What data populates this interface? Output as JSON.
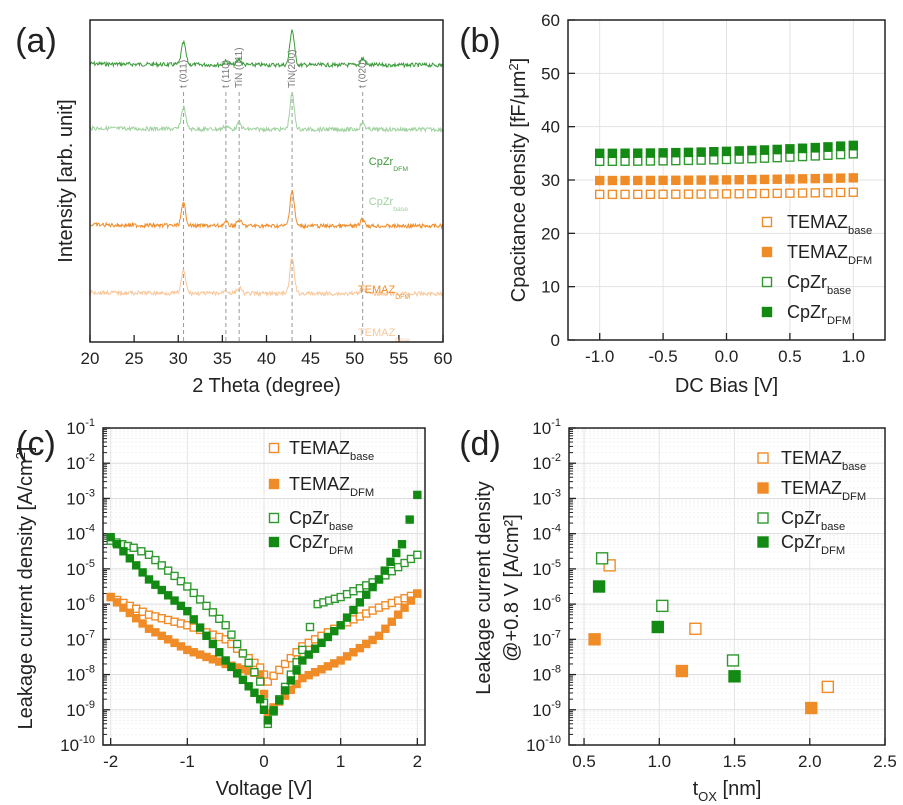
{
  "chart_data": [
    {
      "panel": "(a)",
      "type": "line",
      "xlabel": "2 Theta (degree)",
      "ylabel": "Intensity [arb. unit]",
      "xlim": [
        20,
        60
      ],
      "xticks": [
        20,
        25,
        30,
        35,
        40,
        45,
        50,
        55,
        60
      ],
      "peaks": [
        {
          "label": "t (011)",
          "x": 30.6
        },
        {
          "label": "t (110)",
          "x": 35.4
        },
        {
          "label": "TiN (011)",
          "x": 36.9
        },
        {
          "label": "TiN(200)",
          "x": 42.9
        },
        {
          "label": "t (020)",
          "x": 50.9
        }
      ],
      "series": [
        {
          "name": "CpZr",
          "sub": "DFM",
          "color": "#3a9a3a",
          "offset": 0.86
        },
        {
          "name": "CpZr",
          "sub": "base",
          "color": "#9fd19f",
          "offset": 0.66
        },
        {
          "name": "TEMAZ",
          "sub": "DFM",
          "color": "#f08c28",
          "offset": 0.36
        },
        {
          "name": "TEMAZ",
          "sub": "base",
          "color": "#f8c79a",
          "offset": 0.15
        }
      ]
    },
    {
      "panel": "(b)",
      "type": "scatter",
      "xlabel": "DC Bias [V]",
      "ylabel": "Cpacitance density [fF/μm²]",
      "xlim": [
        -1.25,
        1.25
      ],
      "ylim": [
        0,
        60
      ],
      "xticks": [
        "-1.0",
        "-0.5",
        "0.0",
        "0.5",
        "1.0"
      ],
      "yticks": [
        "0",
        "10",
        "20",
        "30",
        "40",
        "50",
        "60"
      ],
      "legend": "bottom-right",
      "series": [
        {
          "name": "TEMAZ",
          "sub": "base",
          "color": "#f08c28",
          "filled": false,
          "y_start": 27.3,
          "y_end": 27.7
        },
        {
          "name": "TEMAZ",
          "sub": "DFM",
          "color": "#f08c28",
          "filled": true,
          "y_start": 29.9,
          "y_end": 30.4
        },
        {
          "name": "CpZr",
          "sub": "base",
          "color": "#2e9a2e",
          "filled": false,
          "y_start": 33.5,
          "y_end": 34.9
        },
        {
          "name": "CpZr",
          "sub": "DFM",
          "color": "#138a13",
          "filled": true,
          "y_start": 35.0,
          "y_end": 36.5
        }
      ]
    },
    {
      "panel": "(c)",
      "type": "scatter",
      "xlabel": "Voltage [V]",
      "ylabel": "Leakage current density [A/cm²]",
      "xlim": [
        -2.1,
        2.1
      ],
      "yscale": "log",
      "ylim_exp": [
        -10,
        -1
      ],
      "xticks": [
        "-2",
        "-1",
        "0",
        "1",
        "2"
      ],
      "legend": "top-right",
      "series": [
        {
          "name": "TEMAZ",
          "sub": "base",
          "color": "#f08c28",
          "filled": false,
          "points": [
            [
              -2,
              -5.8
            ],
            [
              -1.5,
              -6.3
            ],
            [
              -1,
              -6.6
            ],
            [
              -0.5,
              -7.0
            ],
            [
              -0.05,
              -7.8
            ],
            [
              0.05,
              -8.2
            ],
            [
              0.5,
              -7.2
            ],
            [
              1,
              -6.6
            ],
            [
              1.5,
              -6.1
            ],
            [
              2,
              -5.7
            ]
          ]
        },
        {
          "name": "TEMAZ",
          "sub": "DFM",
          "color": "#f08c28",
          "filled": true,
          "points": [
            [
              -2,
              -5.8
            ],
            [
              -1.5,
              -6.7
            ],
            [
              -1,
              -7.3
            ],
            [
              -0.5,
              -7.7
            ],
            [
              -0.05,
              -8.0
            ],
            [
              0.05,
              -9.1
            ],
            [
              0.5,
              -8.1
            ],
            [
              1,
              -7.6
            ],
            [
              1.5,
              -6.9
            ],
            [
              2,
              -5.7
            ]
          ]
        },
        {
          "name": "CpZr",
          "sub": "base",
          "color": "#2e9a2e",
          "filled": false,
          "points": [
            [
              -2,
              -4.2
            ],
            [
              -1.7,
              -4.4
            ],
            [
              -1.5,
              -4.6
            ],
            [
              -1,
              -5.5
            ],
            [
              -0.5,
              -6.6
            ],
            [
              -0.05,
              -8.2
            ],
            [
              0.05,
              -9.4
            ],
            [
              0.5,
              -7.3
            ],
            [
              0.7,
              -6.0
            ],
            [
              1,
              -5.8
            ],
            [
              1.5,
              -5.3
            ],
            [
              2,
              -4.6
            ]
          ]
        },
        {
          "name": "CpZr",
          "sub": "DFM",
          "color": "#138a13",
          "filled": true,
          "points": [
            [
              -2,
              -4.1
            ],
            [
              -1.5,
              -5.3
            ],
            [
              -1,
              -6.2
            ],
            [
              -0.5,
              -7.6
            ],
            [
              -0.05,
              -8.7
            ],
            [
              0.05,
              -9.3
            ],
            [
              0.5,
              -7.6
            ],
            [
              1,
              -6.6
            ],
            [
              1.5,
              -5.3
            ],
            [
              1.8,
              -4.3
            ],
            [
              2,
              -2.9
            ]
          ]
        }
      ]
    },
    {
      "panel": "(d)",
      "type": "scatter",
      "xlabel": "t",
      "xlabel_sub": "OX",
      "xlabel_unit": "[nm]",
      "ylabel_line1": "Leakage current density",
      "ylabel_line2": "@+0.8 V [A/cm²]",
      "xlim": [
        0.4,
        2.5
      ],
      "yscale": "log",
      "ylim_exp": [
        -10,
        -1
      ],
      "xticks": [
        "0.5",
        "1.0",
        "1.5",
        "2.0",
        "2.5"
      ],
      "legend": "top-right",
      "series": [
        {
          "name": "TEMAZ",
          "sub": "base",
          "color": "#f08c28",
          "filled": false,
          "points": [
            [
              0.67,
              -4.9
            ],
            [
              1.24,
              -6.7
            ],
            [
              2.12,
              -8.35
            ]
          ]
        },
        {
          "name": "TEMAZ",
          "sub": "DFM",
          "color": "#f08c28",
          "filled": true,
          "points": [
            [
              0.57,
              -7.0
            ],
            [
              1.15,
              -7.9
            ],
            [
              2.01,
              -8.95
            ]
          ]
        },
        {
          "name": "CpZr",
          "sub": "base",
          "color": "#2e9a2e",
          "filled": false,
          "points": [
            [
              0.62,
              -4.7
            ],
            [
              1.02,
              -6.05
            ],
            [
              1.49,
              -7.6
            ]
          ]
        },
        {
          "name": "CpZr",
          "sub": "DFM",
          "color": "#138a13",
          "filled": true,
          "points": [
            [
              0.6,
              -5.5
            ],
            [
              0.99,
              -6.65
            ],
            [
              1.5,
              -8.05
            ]
          ]
        }
      ]
    }
  ]
}
